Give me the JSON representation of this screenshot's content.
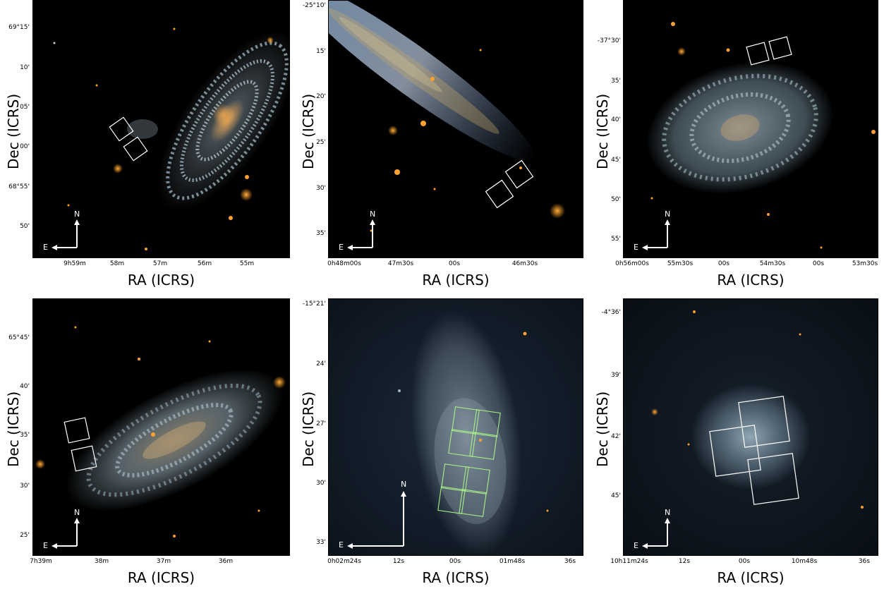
{
  "panels": [
    {
      "ylabel": "Dec (ICRS)",
      "xlabel": "RA (ICRS)",
      "yticks": [
        "69°15'",
        "10'",
        "05'",
        "00'",
        "68°55'",
        "50'"
      ],
      "xticks": [
        "9h59m",
        "58m",
        "57m",
        "56m",
        "55m"
      ],
      "compass": {
        "n": "N",
        "e": "E"
      }
    },
    {
      "ylabel": "Dec (ICRS)",
      "xlabel": "RA (ICRS)",
      "yticks": [
        "-25°10'",
        "15'",
        "20'",
        "25'",
        "30'",
        "35'"
      ],
      "xticks": [
        "0h48m00s",
        "47m30s",
        "00s",
        "46m30s"
      ],
      "compass": {
        "n": "N",
        "e": "E"
      }
    },
    {
      "ylabel": "Dec (ICRS)",
      "xlabel": "RA (ICRS)",
      "yticks": [
        "-37°30'",
        "35'",
        "40'",
        "45'",
        "50'",
        "55'"
      ],
      "xticks": [
        "0h56m00s",
        "55m30s",
        "00s",
        "54m30s",
        "00s",
        "53m30s"
      ],
      "compass": {
        "n": "N",
        "e": "E"
      }
    },
    {
      "ylabel": "Dec (ICRS)",
      "xlabel": "RA (ICRS)",
      "yticks": [
        "65°45'",
        "40'",
        "35'",
        "30'",
        "25'"
      ],
      "xticks": [
        "7h39m",
        "38m",
        "37m",
        "36m"
      ],
      "compass": {
        "n": "N",
        "e": "E"
      }
    },
    {
      "ylabel": "Dec (ICRS)",
      "xlabel": "RA (ICRS)",
      "yticks": [
        "-15°21'",
        "24'",
        "27'",
        "30'",
        "33'"
      ],
      "xticks": [
        "0h02m24s",
        "12s",
        "00s",
        "01m48s",
        "36s"
      ],
      "compass": {
        "n": "N",
        "e": "E"
      }
    },
    {
      "ylabel": "Dec (ICRS)",
      "xlabel": "RA (ICRS)",
      "yticks": [
        "-4°36'",
        "39'",
        "42'",
        "45'"
      ],
      "xticks": [
        "10h11m24s",
        "12s",
        "00s",
        "10m48s",
        "36s"
      ],
      "compass": {
        "n": "N",
        "e": "E"
      }
    }
  ]
}
